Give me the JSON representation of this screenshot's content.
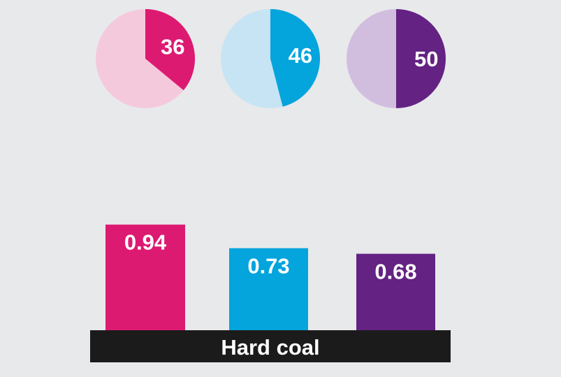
{
  "chart_data": [
    {
      "type": "pie",
      "title": "",
      "charts": [
        {
          "value": 36,
          "label": "36",
          "color": "#dd1a72",
          "track_color": "#f5c9dc"
        },
        {
          "value": 46,
          "label": "46",
          "color": "#04a4dc",
          "track_color": "#c6e4f4"
        },
        {
          "value": 50,
          "label": "50",
          "color": "#642283",
          "track_color": "#d1bedf"
        }
      ]
    },
    {
      "type": "bar",
      "title": "",
      "categories": [
        "Hard coal"
      ],
      "series": [
        {
          "values": [
            0.94
          ],
          "color": "#dd1a72"
        },
        {
          "values": [
            0.73
          ],
          "color": "#04a4dc"
        },
        {
          "values": [
            0.68
          ],
          "color": "#642283"
        }
      ],
      "value_labels": [
        "0.94",
        "0.73",
        "0.68"
      ],
      "ylim": [
        0,
        1
      ]
    }
  ],
  "colors": {
    "background": "#e8e9eb",
    "category_bar": "#1b1b1b",
    "category_text": "#ffffff"
  }
}
